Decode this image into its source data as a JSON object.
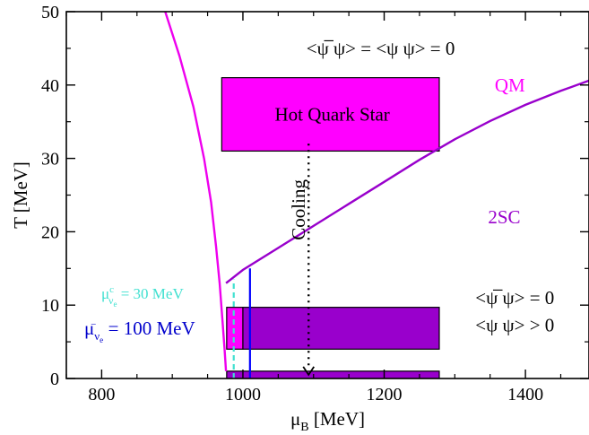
{
  "chart_data": {
    "type": "line",
    "xlabel": "μB [MeV]",
    "ylabel": "T [MeV]",
    "xlim": [
      750,
      1490
    ],
    "ylim": [
      0,
      50
    ],
    "x_ticks": [
      800,
      1000,
      1200,
      1400
    ],
    "y_ticks": [
      0,
      10,
      20,
      30,
      40,
      50
    ],
    "curves": [
      {
        "id": "hadron-boundary",
        "color": "#ee00ee",
        "x": [
          890,
          910,
          930,
          945,
          955,
          962,
          967,
          971,
          974,
          976
        ],
        "y": [
          50,
          44,
          37,
          30,
          24,
          18,
          13,
          8,
          4,
          1
        ]
      },
      {
        "id": "2sc-boundary",
        "color": "#9900cc",
        "x": [
          976,
          1000,
          1050,
          1100,
          1150,
          1200,
          1250,
          1300,
          1350,
          1400,
          1450,
          1490
        ],
        "y": [
          13,
          14.8,
          17.8,
          20.8,
          23.8,
          26.8,
          29.8,
          32.6,
          35.1,
          37.3,
          39.2,
          40.6
        ]
      }
    ],
    "boxes": [
      {
        "id": "hot-quark-star",
        "label": "Hot Quark Star",
        "x": [
          970,
          1278
        ],
        "y": [
          31,
          41
        ],
        "color": "#ff00ff"
      },
      {
        "id": "lower-box-magenta",
        "x": [
          977,
          1000
        ],
        "y": [
          4,
          9.7
        ],
        "color": "#ff00ff"
      },
      {
        "id": "lower-box-purple",
        "x": [
          1000,
          1278
        ],
        "y": [
          4,
          9.7
        ],
        "color": "#9900cc"
      },
      {
        "id": "bottom-bar",
        "x": [
          977,
          1278
        ],
        "y": [
          0,
          1
        ],
        "color": "#9900cc"
      }
    ],
    "vertical_lines": [
      {
        "id": "mu-30",
        "x": 987,
        "y": [
          0,
          13.5
        ],
        "color": "#40e0d0",
        "dashed": true
      },
      {
        "id": "mu-100",
        "x": 1010,
        "y": [
          0,
          15
        ],
        "color": "#0000ff",
        "dashed": false
      }
    ],
    "cooling_arrow": {
      "x": 1093,
      "y": [
        32,
        0.5
      ],
      "label": "Cooling"
    },
    "annotations": {
      "qm": {
        "text": "QM",
        "x": 1378,
        "y": 40,
        "color": "#ff00ff"
      },
      "tsc": {
        "text": "2SC",
        "x": 1370,
        "y": 22,
        "color": "#9900cc"
      },
      "cond_top": {
        "text": "<ψ ψ> = <ψ ψ> = 0",
        "x": 1195,
        "y": 45
      },
      "cond_mid_1": {
        "text": "<ψ ψ> = 0",
        "x": 1385,
        "y": 11
      },
      "cond_mid_2": {
        "text": "<ψ ψ> > 0",
        "x": 1385,
        "y": 7.3
      },
      "mu30": {
        "text": "μc νe = 30 MeV",
        "color": "#40e0d0"
      },
      "mu100": {
        "text": "μνe = 100 MeV",
        "color": "#0000cc"
      }
    }
  }
}
